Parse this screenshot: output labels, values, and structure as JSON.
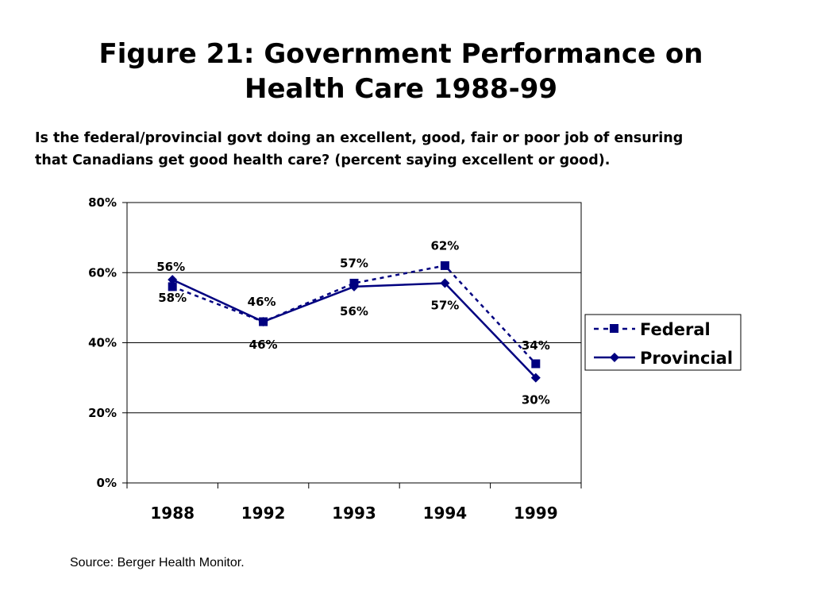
{
  "title_line1": "Figure 21: Government Performance on",
  "title_line2": "Health Care 1988-99",
  "subtitle_line1": "Is the federal/provincial govt doing an excellent, good, fair or poor job of ensuring",
  "subtitle_line2": "that Canadians get good health care? (percent saying excellent or good).",
  "source": "Source: Berger Health Monitor.",
  "colors": {
    "series": "#000080",
    "grid": "#000000",
    "frame": "#000000"
  },
  "chart_data": {
    "type": "line",
    "categories": [
      "1988",
      "1992",
      "1993",
      "1994",
      "1999"
    ],
    "ylim": [
      0,
      80
    ],
    "yticks": [
      "0%",
      "20%",
      "40%",
      "60%",
      "80%"
    ],
    "ytick_values": [
      0,
      20,
      40,
      60,
      80
    ],
    "grid": true,
    "legend_position": "right",
    "series": [
      {
        "name": "Federal",
        "style": "dashed",
        "marker": "square",
        "values": [
          56,
          46,
          57,
          62,
          34
        ],
        "labels": [
          "56%",
          "46%",
          "57%",
          "62%",
          "34%"
        ]
      },
      {
        "name": "Provincial",
        "style": "solid",
        "marker": "diamond",
        "values": [
          58,
          46,
          56,
          57,
          30
        ],
        "labels": [
          "58%",
          "46%",
          "56%",
          "57%",
          "30%"
        ]
      }
    ]
  }
}
